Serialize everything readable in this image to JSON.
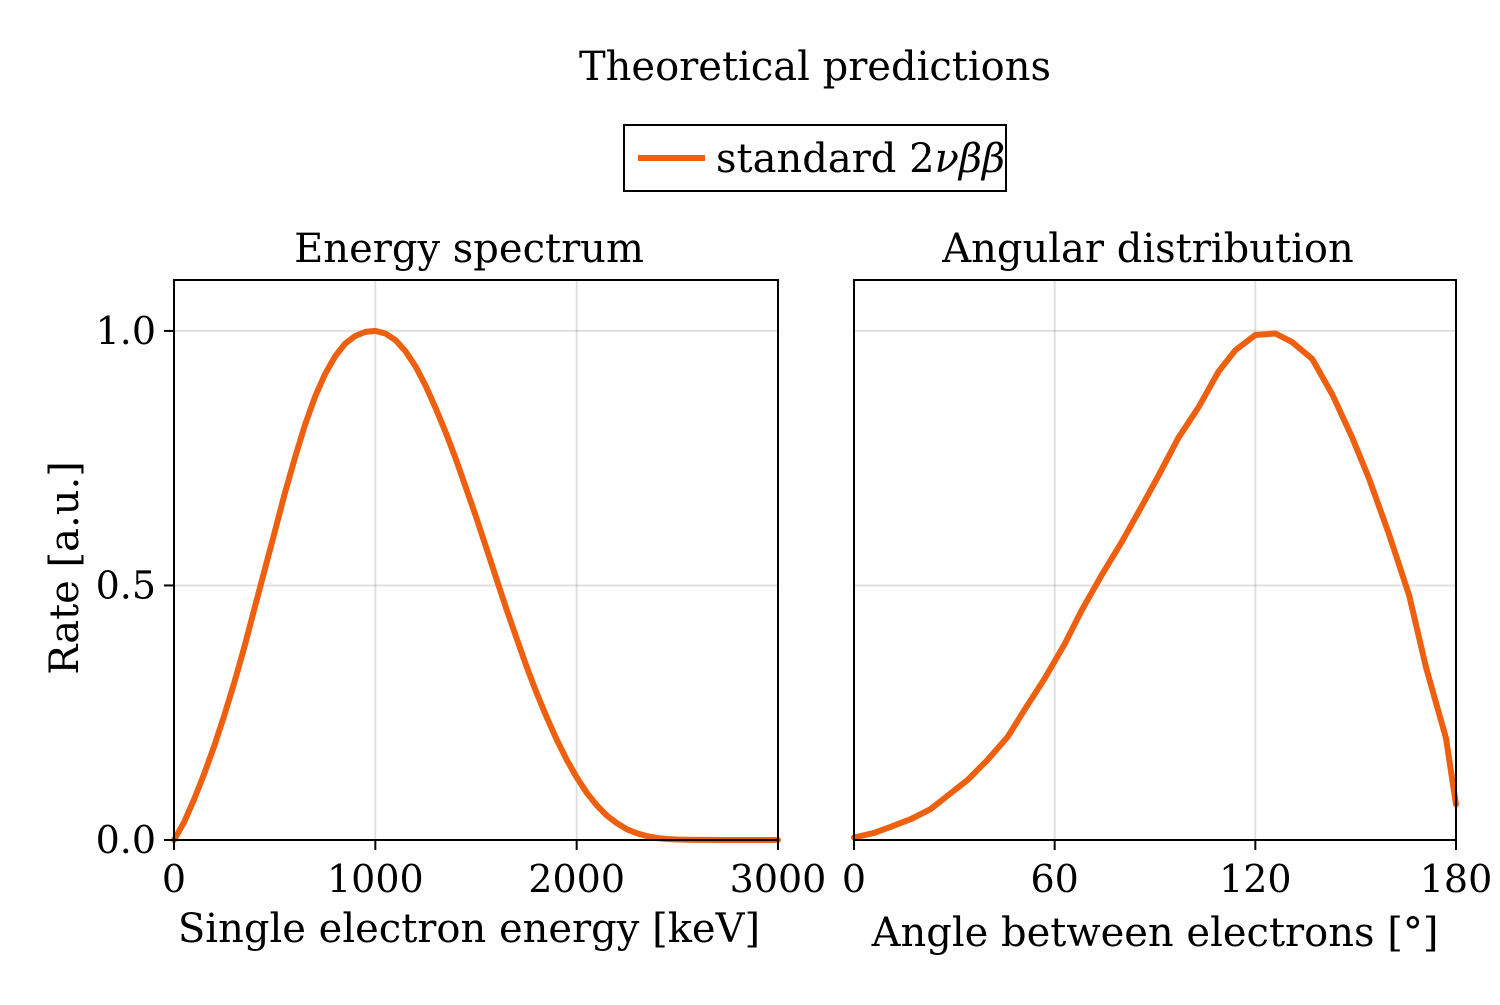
{
  "figure": {
    "title": "Theoretical predictions",
    "legend": {
      "placement": "top-center",
      "entries": [
        {
          "label": "standard 2νββ",
          "label_main": "standard 2",
          "label_math": "νββ",
          "color": "#ee6010"
        }
      ]
    }
  },
  "chart_data": [
    {
      "type": "line",
      "title": "Energy spectrum",
      "xlabel": "Single electron energy [keV]",
      "ylabel": "Rate [a.u.]",
      "xlim": [
        0,
        3000
      ],
      "ylim": [
        0,
        1.1
      ],
      "xticks": [
        0,
        1000,
        2000,
        3000
      ],
      "xtick_labels": [
        "0",
        "1000",
        "2000",
        "3000"
      ],
      "yticks": [
        0.0,
        0.5,
        1.0
      ],
      "ytick_labels": [
        "0.0",
        "0.5",
        "1.0"
      ],
      "grid": true,
      "series": [
        {
          "name": "standard 2νββ",
          "color": "#ee6010",
          "x": [
            0,
            50,
            100,
            150,
            200,
            250,
            300,
            350,
            400,
            450,
            500,
            550,
            600,
            650,
            700,
            750,
            800,
            850,
            900,
            950,
            1000,
            1050,
            1100,
            1150,
            1200,
            1250,
            1300,
            1350,
            1400,
            1450,
            1500,
            1550,
            1600,
            1650,
            1700,
            1750,
            1800,
            1850,
            1900,
            1950,
            2000,
            2050,
            2100,
            2150,
            2200,
            2250,
            2300,
            2350,
            2400,
            2450,
            2500,
            2550,
            2600,
            2650,
            2700,
            2750,
            2800,
            2850,
            2900,
            2950,
            3000
          ],
          "y": [
            0.0,
            0.035,
            0.08,
            0.13,
            0.185,
            0.245,
            0.31,
            0.38,
            0.455,
            0.53,
            0.605,
            0.68,
            0.75,
            0.815,
            0.87,
            0.915,
            0.95,
            0.975,
            0.99,
            0.998,
            1.0,
            0.995,
            0.982,
            0.96,
            0.93,
            0.892,
            0.848,
            0.8,
            0.748,
            0.692,
            0.635,
            0.575,
            0.515,
            0.455,
            0.398,
            0.342,
            0.29,
            0.242,
            0.198,
            0.158,
            0.123,
            0.093,
            0.068,
            0.048,
            0.033,
            0.021,
            0.013,
            0.0075,
            0.004,
            0.002,
            0.001,
            0.0005,
            0.0002,
            0.0001,
            5e-05,
            0.0,
            0.0,
            0.0,
            0.0,
            0.0,
            0.0
          ]
        }
      ]
    },
    {
      "type": "line",
      "title": "Angular distribution",
      "xlabel": "Angle between electrons [°]",
      "ylabel": "",
      "xlim": [
        0,
        180
      ],
      "ylim": [
        0,
        1.1
      ],
      "xticks": [
        0,
        60,
        120,
        180
      ],
      "xtick_labels": [
        "0",
        "60",
        "120",
        "180"
      ],
      "yticks": [
        0.0,
        0.5,
        1.0
      ],
      "ytick_labels": [],
      "grid": true,
      "series": [
        {
          "name": "standard 2νββ",
          "color": "#ee6010",
          "x": [
            0,
            6,
            11,
            17,
            23,
            28,
            34,
            40,
            46,
            51,
            57,
            63,
            68,
            74,
            80,
            86,
            91,
            97,
            103,
            109,
            114,
            120,
            126,
            131,
            137,
            143,
            149,
            154,
            160,
            166,
            171,
            177,
            180
          ],
          "y": [
            0.005,
            0.014,
            0.026,
            0.041,
            0.061,
            0.087,
            0.118,
            0.158,
            0.203,
            0.256,
            0.317,
            0.385,
            0.45,
            0.52,
            0.585,
            0.655,
            0.715,
            0.79,
            0.85,
            0.92,
            0.962,
            0.992,
            0.995,
            0.978,
            0.945,
            0.875,
            0.79,
            0.71,
            0.6,
            0.48,
            0.34,
            0.2,
            0.07
          ]
        }
      ]
    }
  ]
}
